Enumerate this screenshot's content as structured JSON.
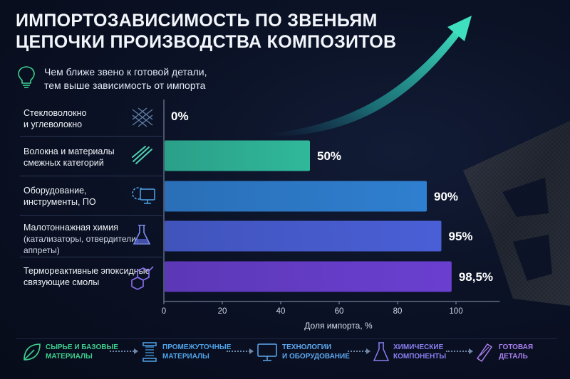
{
  "title": {
    "line1": "ИМПОРТОЗАВИСИМОСТЬ ПО ЗВЕНЬЯМ",
    "line2": "ЦЕПОЧКИ ПРОИЗВОДСТВА КОМПОЗИТОВ"
  },
  "subtitle": {
    "line1": "Чем ближе звено к готовой детали,",
    "line2": "тем выше зависимость от импорта"
  },
  "rows": [
    {
      "label_1": "Стекловолокно",
      "label_2": "и углеволокно",
      "label_3": ""
    },
    {
      "label_1": "Волокна и материалы",
      "label_2": "смежных категорий",
      "label_3": ""
    },
    {
      "label_1": "Оборудование,",
      "label_2": "инструменты, ПО",
      "label_3": ""
    },
    {
      "label_1": "Малотоннажная химия",
      "label_2": "(катализаторы, отвердители,",
      "label_3": "аппреты)"
    },
    {
      "label_1": "Термореактивные эпоксидные",
      "label_2": "связующие смолы",
      "label_3": ""
    }
  ],
  "chart_data": {
    "type": "bar",
    "orientation": "horizontal",
    "categories": [
      "Стекловолокно и углеволокно",
      "Волокна и материалы смежных категорий",
      "Оборудование, инструменты, ПО",
      "Малотоннажная химия (катализаторы, отвердители, аппреты)",
      "Термореактивные эпоксидные связующие смолы"
    ],
    "values": [
      0,
      50,
      90,
      95,
      98.5
    ],
    "data_labels": [
      "0%",
      "50%",
      "90%",
      "95%",
      "98,5%"
    ],
    "xlabel": "Доля импорта, %",
    "ylabel": "",
    "xlim": [
      0,
      115
    ],
    "xticks": [
      0,
      20,
      40,
      60,
      80,
      100
    ],
    "xtick_labels": [
      "0",
      "20",
      "40",
      "60",
      "80",
      "100"
    ],
    "grid": false,
    "bar_colors": [
      "#2fb8a0",
      "#30b89a",
      "#2f7fd0",
      "#4a5fd6",
      "#6a3fd0"
    ]
  },
  "flow": {
    "steps": [
      {
        "line1": "СЫРЬЕ И БАЗОВЫЕ",
        "line2": "МАТЕРИАЛЫ",
        "color": "#3ecf8e"
      },
      {
        "line1": "ПРОМЕЖУТОЧНЫЕ",
        "line2": "МАТЕРИАЛЫ",
        "color": "#4fa3e8"
      },
      {
        "line1": "ТЕХНОЛОГИИ",
        "line2": "И ОБОРУДОВАНИЕ",
        "color": "#5ea8f0"
      },
      {
        "line1": "ХИМИЧЕСКИЕ",
        "line2": "КОМПОНЕНТЫ",
        "color": "#8a7ff0"
      },
      {
        "line1": "ГОТОВАЯ",
        "line2": "ДЕТАЛЬ",
        "color": "#a97ff0"
      }
    ]
  },
  "icons": {
    "bulb": "lightbulb-icon",
    "rows": [
      "woven-fiber-icon",
      "fiber-strands-icon",
      "gear-monitor-icon",
      "flask-icon",
      "molecule-icon"
    ],
    "flow": [
      "leaf-icon",
      "spool-icon",
      "monitor-icon",
      "flask-icon",
      "composite-part-icon"
    ]
  }
}
